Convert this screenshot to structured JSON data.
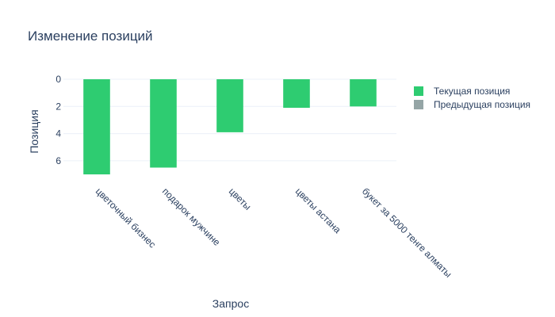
{
  "chart_data": {
    "type": "bar",
    "title": "Изменение позиций",
    "xlabel": "Запрос",
    "ylabel": "Позиция",
    "categories": [
      "цветочный бизнес",
      "подарок мужчине",
      "цветы",
      "цветы астана",
      "букет за 5000 тенге алматы"
    ],
    "series": [
      {
        "name": "Текущая позиция",
        "color": "#2ecc71",
        "values": [
          7.0,
          6.5,
          3.9,
          2.1,
          2.0
        ]
      },
      {
        "name": "Предыдущая позиция",
        "color": "#95a5a6",
        "values": [
          null,
          null,
          null,
          null,
          null
        ]
      }
    ],
    "yticks": [
      0,
      2,
      4,
      6
    ],
    "ylim": [
      0,
      7.5
    ],
    "y_reversed": true,
    "grid": true,
    "legend_position": "top-right"
  }
}
